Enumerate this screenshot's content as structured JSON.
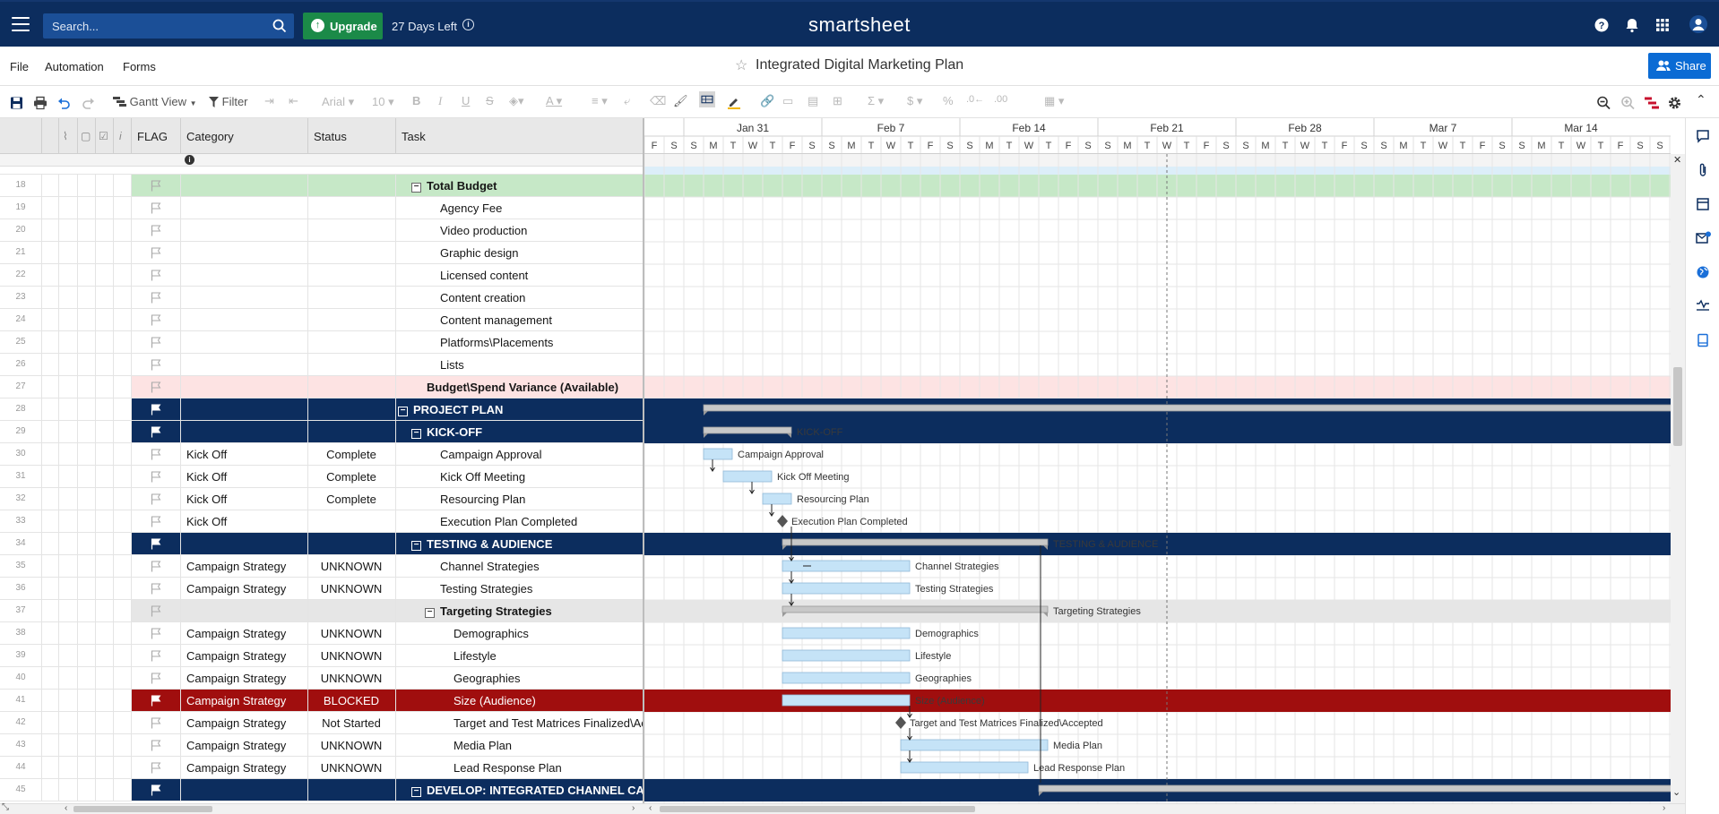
{
  "topbar": {
    "search_placeholder": "Search...",
    "upgrade_label": "Upgrade",
    "days_left": "27 Days Left",
    "brand": "smartsheet"
  },
  "menu": {
    "file": "File",
    "automation": "Automation",
    "forms": "Forms",
    "sheet_title": "Integrated Digital Marketing Plan",
    "share_label": "Share"
  },
  "toolbar": {
    "view_label": "Gantt View",
    "filter_label": "Filter",
    "font_name": "Arial",
    "font_size": "10"
  },
  "columns": {
    "flag": "FLAG",
    "category": "Category",
    "status": "Status",
    "task": "Task"
  },
  "gantt": {
    "weeks": [
      "Jan 31",
      "Feb 7",
      "Feb 14",
      "Feb 21",
      "Feb 28",
      "Mar 7",
      "Mar 14"
    ],
    "day_letters": [
      "F",
      "S",
      "S",
      "M",
      "T",
      "W",
      "T",
      "F",
      "S",
      "S",
      "M",
      "T",
      "W",
      "T",
      "F",
      "S",
      "S",
      "M",
      "T",
      "W",
      "T",
      "F",
      "S",
      "S",
      "M",
      "T",
      "W",
      "T",
      "F",
      "S",
      "S",
      "M",
      "T",
      "W",
      "T",
      "F",
      "S",
      "S",
      "M",
      "T",
      "W",
      "T",
      "F",
      "S",
      "S",
      "M",
      "T",
      "W",
      "T",
      "F",
      "S",
      "S",
      "M"
    ],
    "today_day_index": 26
  },
  "rows": [
    {
      "num": "18",
      "category": "",
      "status": "",
      "task": "Total Budget",
      "indent": 1,
      "style": "green",
      "expander": true
    },
    {
      "num": "19",
      "category": "",
      "status": "",
      "task": "Agency Fee",
      "indent": 2,
      "style": "normal"
    },
    {
      "num": "20",
      "category": "",
      "status": "",
      "task": "Video production",
      "indent": 2,
      "style": "normal"
    },
    {
      "num": "21",
      "category": "",
      "status": "",
      "task": "Graphic design",
      "indent": 2,
      "style": "normal"
    },
    {
      "num": "22",
      "category": "",
      "status": "",
      "task": "Licensed content",
      "indent": 2,
      "style": "normal"
    },
    {
      "num": "23",
      "category": "",
      "status": "",
      "task": "Content creation",
      "indent": 2,
      "style": "normal"
    },
    {
      "num": "24",
      "category": "",
      "status": "",
      "task": "Content management",
      "indent": 2,
      "style": "normal"
    },
    {
      "num": "25",
      "category": "",
      "status": "",
      "task": "Platforms\\Placements",
      "indent": 2,
      "style": "normal"
    },
    {
      "num": "26",
      "category": "",
      "status": "",
      "task": "Lists",
      "indent": 2,
      "style": "normal"
    },
    {
      "num": "27",
      "category": "",
      "status": "",
      "task": "Budget\\Spend Variance (Available)",
      "indent": 1,
      "style": "pink"
    },
    {
      "num": "28",
      "category": "",
      "status": "",
      "task": "PROJECT PLAN",
      "indent": 0,
      "style": "nav",
      "expander": true
    },
    {
      "num": "29",
      "category": "",
      "status": "",
      "task": "KICK-OFF",
      "indent": 1,
      "style": "nav",
      "expander": true
    },
    {
      "num": "30",
      "category": "Kick Off",
      "status": "Complete",
      "task": "Campaign Approval",
      "indent": 2,
      "style": "normal"
    },
    {
      "num": "31",
      "category": "Kick Off",
      "status": "Complete",
      "task": "Kick Off Meeting",
      "indent": 2,
      "style": "normal"
    },
    {
      "num": "32",
      "category": "Kick Off",
      "status": "Complete",
      "task": "Resourcing Plan",
      "indent": 2,
      "style": "normal"
    },
    {
      "num": "33",
      "category": "Kick Off",
      "status": "",
      "task": "Execution Plan Completed",
      "indent": 2,
      "style": "normal"
    },
    {
      "num": "34",
      "category": "",
      "status": "",
      "task": "TESTING & AUDIENCE",
      "indent": 1,
      "style": "nav",
      "expander": true
    },
    {
      "num": "35",
      "category": "Campaign Strategy",
      "status": "UNKNOWN",
      "task": "Channel Strategies",
      "indent": 2,
      "style": "normal"
    },
    {
      "num": "36",
      "category": "Campaign Strategy",
      "status": "UNKNOWN",
      "task": "Testing Strategies",
      "indent": 2,
      "style": "normal"
    },
    {
      "num": "37",
      "category": "",
      "status": "",
      "task": "Targeting Strategies",
      "indent": 2,
      "style": "gray",
      "expander": true
    },
    {
      "num": "38",
      "category": "Campaign Strategy",
      "status": "UNKNOWN",
      "task": "Demographics",
      "indent": 3,
      "style": "normal"
    },
    {
      "num": "39",
      "category": "Campaign Strategy",
      "status": "UNKNOWN",
      "task": "Lifestyle",
      "indent": 3,
      "style": "normal"
    },
    {
      "num": "40",
      "category": "Campaign Strategy",
      "status": "UNKNOWN",
      "task": "Geographies",
      "indent": 3,
      "style": "normal"
    },
    {
      "num": "41",
      "category": "Campaign Strategy",
      "status": "BLOCKED",
      "task": "Size (Audience)",
      "indent": 3,
      "style": "red"
    },
    {
      "num": "42",
      "category": "Campaign Strategy",
      "status": "Not Started",
      "task": "Target and Test Matrices Finalized\\Accepted",
      "indent": 3,
      "style": "normal"
    },
    {
      "num": "43",
      "category": "Campaign Strategy",
      "status": "UNKNOWN",
      "task": "Media Plan",
      "indent": 3,
      "style": "normal"
    },
    {
      "num": "44",
      "category": "Campaign Strategy",
      "status": "UNKNOWN",
      "task": "Lead Response Plan",
      "indent": 3,
      "style": "normal"
    },
    {
      "num": "45",
      "category": "",
      "status": "",
      "task": "DEVELOP: INTEGRATED CHANNEL CAMPAIGN",
      "indent": 1,
      "style": "nav",
      "expander": true
    }
  ],
  "bars": [
    {
      "row": 10,
      "start": 3,
      "end": 52,
      "kind": "summary",
      "label": ""
    },
    {
      "row": 11,
      "start": 3,
      "end": 7,
      "kind": "summary",
      "label": "KICK-OFF"
    },
    {
      "row": 12,
      "start": 3,
      "end": 4,
      "kind": "task",
      "label": "Campaign Approval"
    },
    {
      "row": 13,
      "start": 4,
      "end": 6,
      "kind": "task",
      "label": "Kick Off Meeting"
    },
    {
      "row": 14,
      "start": 6,
      "end": 7,
      "kind": "task",
      "label": "Resourcing Plan"
    },
    {
      "row": 15,
      "start": 7,
      "end": 7,
      "kind": "milestone",
      "label": "Execution Plan Completed"
    },
    {
      "row": 16,
      "start": 7,
      "end": 20,
      "kind": "summary",
      "label": "TESTING & AUDIENCE"
    },
    {
      "row": 17,
      "start": 7,
      "end": 13,
      "kind": "task",
      "label": "Channel Strategies"
    },
    {
      "row": 18,
      "start": 7,
      "end": 13,
      "kind": "task",
      "label": "Testing Strategies"
    },
    {
      "row": 19,
      "start": 7,
      "end": 20,
      "kind": "summary",
      "label": "Targeting Strategies"
    },
    {
      "row": 20,
      "start": 7,
      "end": 13,
      "kind": "task",
      "label": "Demographics"
    },
    {
      "row": 21,
      "start": 7,
      "end": 13,
      "kind": "task",
      "label": "Lifestyle"
    },
    {
      "row": 22,
      "start": 7,
      "end": 13,
      "kind": "task",
      "label": "Geographies"
    },
    {
      "row": 23,
      "start": 7,
      "end": 13,
      "kind": "task",
      "label": "Size (Audience)"
    },
    {
      "row": 24,
      "start": 13,
      "end": 13,
      "kind": "milestone",
      "label": "Target and Test Matrices Finalized\\Accepted"
    },
    {
      "row": 25,
      "start": 13,
      "end": 20,
      "kind": "task",
      "label": "Media Plan"
    },
    {
      "row": 26,
      "start": 13,
      "end": 19,
      "kind": "task",
      "label": "Lead Response Plan"
    },
    {
      "row": 27,
      "start": 20,
      "end": 52,
      "kind": "summary",
      "label": ""
    }
  ]
}
